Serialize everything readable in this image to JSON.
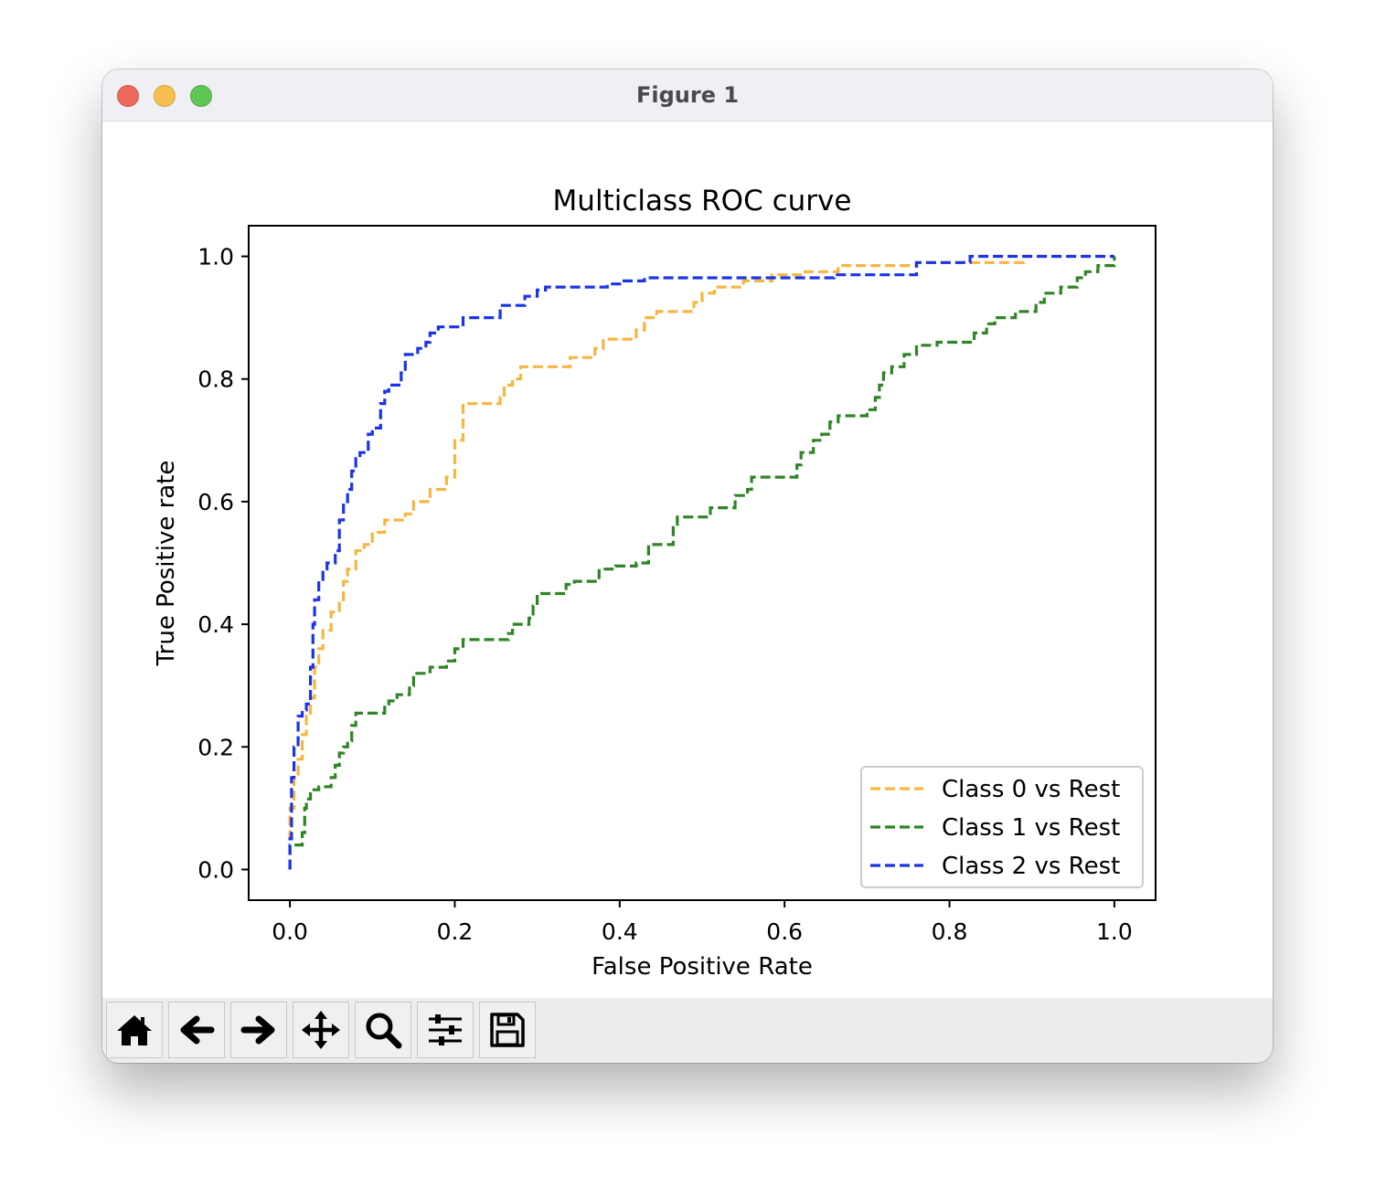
{
  "window": {
    "title": "Figure 1"
  },
  "toolbar": {
    "buttons": [
      {
        "name": "home",
        "icon": "home-icon"
      },
      {
        "name": "back",
        "icon": "arrow-left-icon"
      },
      {
        "name": "forward",
        "icon": "arrow-right-icon"
      },
      {
        "name": "pan",
        "icon": "move-icon"
      },
      {
        "name": "zoom",
        "icon": "magnifier-icon"
      },
      {
        "name": "configure",
        "icon": "sliders-icon"
      },
      {
        "name": "save",
        "icon": "floppy-disk-icon"
      }
    ]
  },
  "chart_data": {
    "type": "line",
    "title": "Multiclass ROC curve",
    "xlabel": "False Positive Rate",
    "ylabel": "True Positive rate",
    "xlim": [
      -0.05,
      1.05
    ],
    "ylim": [
      -0.05,
      1.05
    ],
    "xticks": [
      0.0,
      0.2,
      0.4,
      0.6,
      0.8,
      1.0
    ],
    "xtick_labels": [
      "0.0",
      "0.2",
      "0.4",
      "0.6",
      "0.8",
      "1.0"
    ],
    "yticks": [
      0.0,
      0.2,
      0.4,
      0.6,
      0.8,
      1.0
    ],
    "ytick_labels": [
      "0.0",
      "0.2",
      "0.4",
      "0.6",
      "0.8",
      "1.0"
    ],
    "grid": false,
    "legend_position": "lower-right",
    "series": [
      {
        "name": "Class 0 vs Rest",
        "color": "#f5b642",
        "style": "dashed",
        "points": [
          [
            0,
            0
          ],
          [
            0,
            0.06
          ],
          [
            0,
            0.1
          ],
          [
            0.005,
            0.1
          ],
          [
            0.005,
            0.15
          ],
          [
            0.01,
            0.15
          ],
          [
            0.01,
            0.18
          ],
          [
            0.015,
            0.18
          ],
          [
            0.015,
            0.22
          ],
          [
            0.02,
            0.22
          ],
          [
            0.02,
            0.25
          ],
          [
            0.025,
            0.25
          ],
          [
            0.025,
            0.28
          ],
          [
            0.03,
            0.28
          ],
          [
            0.03,
            0.33
          ],
          [
            0.035,
            0.33
          ],
          [
            0.035,
            0.36
          ],
          [
            0.04,
            0.36
          ],
          [
            0.04,
            0.39
          ],
          [
            0.05,
            0.39
          ],
          [
            0.05,
            0.42
          ],
          [
            0.06,
            0.42
          ],
          [
            0.06,
            0.44
          ],
          [
            0.065,
            0.44
          ],
          [
            0.065,
            0.47
          ],
          [
            0.07,
            0.47
          ],
          [
            0.07,
            0.49
          ],
          [
            0.08,
            0.49
          ],
          [
            0.08,
            0.52
          ],
          [
            0.09,
            0.52
          ],
          [
            0.09,
            0.53
          ],
          [
            0.1,
            0.53
          ],
          [
            0.1,
            0.55
          ],
          [
            0.115,
            0.55
          ],
          [
            0.115,
            0.57
          ],
          [
            0.14,
            0.57
          ],
          [
            0.14,
            0.58
          ],
          [
            0.15,
            0.58
          ],
          [
            0.15,
            0.6
          ],
          [
            0.17,
            0.6
          ],
          [
            0.17,
            0.62
          ],
          [
            0.19,
            0.62
          ],
          [
            0.19,
            0.64
          ],
          [
            0.2,
            0.64
          ],
          [
            0.2,
            0.7
          ],
          [
            0.21,
            0.7
          ],
          [
            0.21,
            0.76
          ],
          [
            0.255,
            0.76
          ],
          [
            0.255,
            0.77
          ],
          [
            0.26,
            0.77
          ],
          [
            0.26,
            0.79
          ],
          [
            0.27,
            0.79
          ],
          [
            0.27,
            0.8
          ],
          [
            0.28,
            0.8
          ],
          [
            0.28,
            0.82
          ],
          [
            0.34,
            0.82
          ],
          [
            0.34,
            0.835
          ],
          [
            0.37,
            0.835
          ],
          [
            0.37,
            0.85
          ],
          [
            0.38,
            0.85
          ],
          [
            0.38,
            0.865
          ],
          [
            0.42,
            0.865
          ],
          [
            0.42,
            0.88
          ],
          [
            0.43,
            0.88
          ],
          [
            0.43,
            0.9
          ],
          [
            0.445,
            0.9
          ],
          [
            0.445,
            0.91
          ],
          [
            0.49,
            0.91
          ],
          [
            0.49,
            0.925
          ],
          [
            0.5,
            0.925
          ],
          [
            0.5,
            0.94
          ],
          [
            0.515,
            0.94
          ],
          [
            0.515,
            0.95
          ],
          [
            0.55,
            0.95
          ],
          [
            0.55,
            0.96
          ],
          [
            0.585,
            0.96
          ],
          [
            0.585,
            0.97
          ],
          [
            0.625,
            0.97
          ],
          [
            0.625,
            0.975
          ],
          [
            0.665,
            0.975
          ],
          [
            0.665,
            0.985
          ],
          [
            0.76,
            0.985
          ],
          [
            0.76,
            0.99
          ],
          [
            0.89,
            0.99
          ],
          [
            0.89,
            1.0
          ],
          [
            1.0,
            1.0
          ]
        ]
      },
      {
        "name": "Class 1 vs Rest",
        "color": "#2e8524",
        "style": "dashed",
        "points": [
          [
            0,
            0
          ],
          [
            0,
            0.04
          ],
          [
            0.015,
            0.04
          ],
          [
            0.015,
            0.06
          ],
          [
            0.018,
            0.06
          ],
          [
            0.018,
            0.1
          ],
          [
            0.02,
            0.1
          ],
          [
            0.02,
            0.115
          ],
          [
            0.025,
            0.115
          ],
          [
            0.025,
            0.13
          ],
          [
            0.035,
            0.13
          ],
          [
            0.035,
            0.135
          ],
          [
            0.05,
            0.135
          ],
          [
            0.05,
            0.15
          ],
          [
            0.055,
            0.15
          ],
          [
            0.055,
            0.17
          ],
          [
            0.06,
            0.17
          ],
          [
            0.06,
            0.19
          ],
          [
            0.065,
            0.19
          ],
          [
            0.065,
            0.2
          ],
          [
            0.07,
            0.2
          ],
          [
            0.07,
            0.21
          ],
          [
            0.075,
            0.21
          ],
          [
            0.075,
            0.235
          ],
          [
            0.08,
            0.235
          ],
          [
            0.08,
            0.255
          ],
          [
            0.115,
            0.255
          ],
          [
            0.115,
            0.27
          ],
          [
            0.12,
            0.27
          ],
          [
            0.12,
            0.275
          ],
          [
            0.13,
            0.275
          ],
          [
            0.13,
            0.285
          ],
          [
            0.145,
            0.285
          ],
          [
            0.145,
            0.3
          ],
          [
            0.15,
            0.3
          ],
          [
            0.15,
            0.32
          ],
          [
            0.17,
            0.32
          ],
          [
            0.17,
            0.33
          ],
          [
            0.19,
            0.33
          ],
          [
            0.19,
            0.34
          ],
          [
            0.2,
            0.34
          ],
          [
            0.2,
            0.36
          ],
          [
            0.21,
            0.36
          ],
          [
            0.21,
            0.375
          ],
          [
            0.265,
            0.375
          ],
          [
            0.265,
            0.385
          ],
          [
            0.27,
            0.385
          ],
          [
            0.27,
            0.4
          ],
          [
            0.29,
            0.4
          ],
          [
            0.29,
            0.41
          ],
          [
            0.295,
            0.41
          ],
          [
            0.295,
            0.43
          ],
          [
            0.3,
            0.43
          ],
          [
            0.3,
            0.45
          ],
          [
            0.335,
            0.45
          ],
          [
            0.335,
            0.465
          ],
          [
            0.345,
            0.465
          ],
          [
            0.345,
            0.47
          ],
          [
            0.375,
            0.47
          ],
          [
            0.375,
            0.49
          ],
          [
            0.395,
            0.49
          ],
          [
            0.395,
            0.495
          ],
          [
            0.42,
            0.495
          ],
          [
            0.42,
            0.5
          ],
          [
            0.435,
            0.5
          ],
          [
            0.435,
            0.53
          ],
          [
            0.465,
            0.53
          ],
          [
            0.465,
            0.56
          ],
          [
            0.47,
            0.56
          ],
          [
            0.47,
            0.575
          ],
          [
            0.51,
            0.575
          ],
          [
            0.51,
            0.59
          ],
          [
            0.54,
            0.59
          ],
          [
            0.54,
            0.61
          ],
          [
            0.555,
            0.61
          ],
          [
            0.555,
            0.62
          ],
          [
            0.56,
            0.62
          ],
          [
            0.56,
            0.64
          ],
          [
            0.615,
            0.64
          ],
          [
            0.615,
            0.66
          ],
          [
            0.62,
            0.66
          ],
          [
            0.62,
            0.68
          ],
          [
            0.635,
            0.68
          ],
          [
            0.635,
            0.7
          ],
          [
            0.645,
            0.7
          ],
          [
            0.645,
            0.71
          ],
          [
            0.655,
            0.71
          ],
          [
            0.655,
            0.73
          ],
          [
            0.665,
            0.73
          ],
          [
            0.665,
            0.74
          ],
          [
            0.7,
            0.74
          ],
          [
            0.7,
            0.75
          ],
          [
            0.71,
            0.75
          ],
          [
            0.71,
            0.77
          ],
          [
            0.715,
            0.77
          ],
          [
            0.715,
            0.79
          ],
          [
            0.72,
            0.79
          ],
          [
            0.72,
            0.81
          ],
          [
            0.73,
            0.81
          ],
          [
            0.73,
            0.82
          ],
          [
            0.745,
            0.82
          ],
          [
            0.745,
            0.84
          ],
          [
            0.76,
            0.84
          ],
          [
            0.76,
            0.855
          ],
          [
            0.785,
            0.855
          ],
          [
            0.785,
            0.86
          ],
          [
            0.83,
            0.86
          ],
          [
            0.83,
            0.875
          ],
          [
            0.845,
            0.875
          ],
          [
            0.845,
            0.89
          ],
          [
            0.855,
            0.89
          ],
          [
            0.855,
            0.9
          ],
          [
            0.88,
            0.9
          ],
          [
            0.88,
            0.91
          ],
          [
            0.905,
            0.91
          ],
          [
            0.905,
            0.925
          ],
          [
            0.915,
            0.925
          ],
          [
            0.915,
            0.94
          ],
          [
            0.935,
            0.94
          ],
          [
            0.935,
            0.95
          ],
          [
            0.955,
            0.95
          ],
          [
            0.955,
            0.965
          ],
          [
            0.965,
            0.965
          ],
          [
            0.965,
            0.975
          ],
          [
            0.98,
            0.975
          ],
          [
            0.98,
            0.985
          ],
          [
            1.0,
            0.985
          ],
          [
            1.0,
            1.0
          ]
        ]
      },
      {
        "name": "Class 2 vs Rest",
        "color": "#1c34e8",
        "style": "dashed",
        "points": [
          [
            0,
            0
          ],
          [
            0,
            0.05
          ],
          [
            0.002,
            0.05
          ],
          [
            0.002,
            0.15
          ],
          [
            0.005,
            0.15
          ],
          [
            0.005,
            0.2
          ],
          [
            0.01,
            0.2
          ],
          [
            0.01,
            0.25
          ],
          [
            0.015,
            0.25
          ],
          [
            0.015,
            0.26
          ],
          [
            0.02,
            0.26
          ],
          [
            0.02,
            0.27
          ],
          [
            0.025,
            0.27
          ],
          [
            0.025,
            0.33
          ],
          [
            0.028,
            0.33
          ],
          [
            0.028,
            0.4
          ],
          [
            0.03,
            0.4
          ],
          [
            0.03,
            0.44
          ],
          [
            0.035,
            0.44
          ],
          [
            0.035,
            0.47
          ],
          [
            0.04,
            0.47
          ],
          [
            0.04,
            0.49
          ],
          [
            0.045,
            0.49
          ],
          [
            0.045,
            0.5
          ],
          [
            0.055,
            0.5
          ],
          [
            0.055,
            0.52
          ],
          [
            0.06,
            0.52
          ],
          [
            0.06,
            0.57
          ],
          [
            0.065,
            0.57
          ],
          [
            0.065,
            0.6
          ],
          [
            0.07,
            0.6
          ],
          [
            0.07,
            0.62
          ],
          [
            0.075,
            0.62
          ],
          [
            0.075,
            0.65
          ],
          [
            0.08,
            0.65
          ],
          [
            0.08,
            0.67
          ],
          [
            0.085,
            0.67
          ],
          [
            0.085,
            0.68
          ],
          [
            0.095,
            0.68
          ],
          [
            0.095,
            0.71
          ],
          [
            0.1,
            0.71
          ],
          [
            0.1,
            0.72
          ],
          [
            0.11,
            0.72
          ],
          [
            0.11,
            0.76
          ],
          [
            0.115,
            0.76
          ],
          [
            0.115,
            0.78
          ],
          [
            0.12,
            0.78
          ],
          [
            0.12,
            0.79
          ],
          [
            0.135,
            0.79
          ],
          [
            0.135,
            0.81
          ],
          [
            0.14,
            0.81
          ],
          [
            0.14,
            0.84
          ],
          [
            0.155,
            0.84
          ],
          [
            0.155,
            0.85
          ],
          [
            0.165,
            0.85
          ],
          [
            0.165,
            0.86
          ],
          [
            0.17,
            0.86
          ],
          [
            0.17,
            0.875
          ],
          [
            0.18,
            0.875
          ],
          [
            0.18,
            0.885
          ],
          [
            0.21,
            0.885
          ],
          [
            0.21,
            0.9
          ],
          [
            0.255,
            0.9
          ],
          [
            0.255,
            0.92
          ],
          [
            0.285,
            0.92
          ],
          [
            0.285,
            0.935
          ],
          [
            0.3,
            0.935
          ],
          [
            0.3,
            0.945
          ],
          [
            0.31,
            0.945
          ],
          [
            0.31,
            0.95
          ],
          [
            0.385,
            0.95
          ],
          [
            0.385,
            0.955
          ],
          [
            0.4,
            0.955
          ],
          [
            0.4,
            0.96
          ],
          [
            0.43,
            0.96
          ],
          [
            0.43,
            0.965
          ],
          [
            0.66,
            0.965
          ],
          [
            0.66,
            0.97
          ],
          [
            0.76,
            0.97
          ],
          [
            0.76,
            0.99
          ],
          [
            0.825,
            0.99
          ],
          [
            0.825,
            1.0
          ],
          [
            1.0,
            1.0
          ]
        ]
      }
    ]
  }
}
